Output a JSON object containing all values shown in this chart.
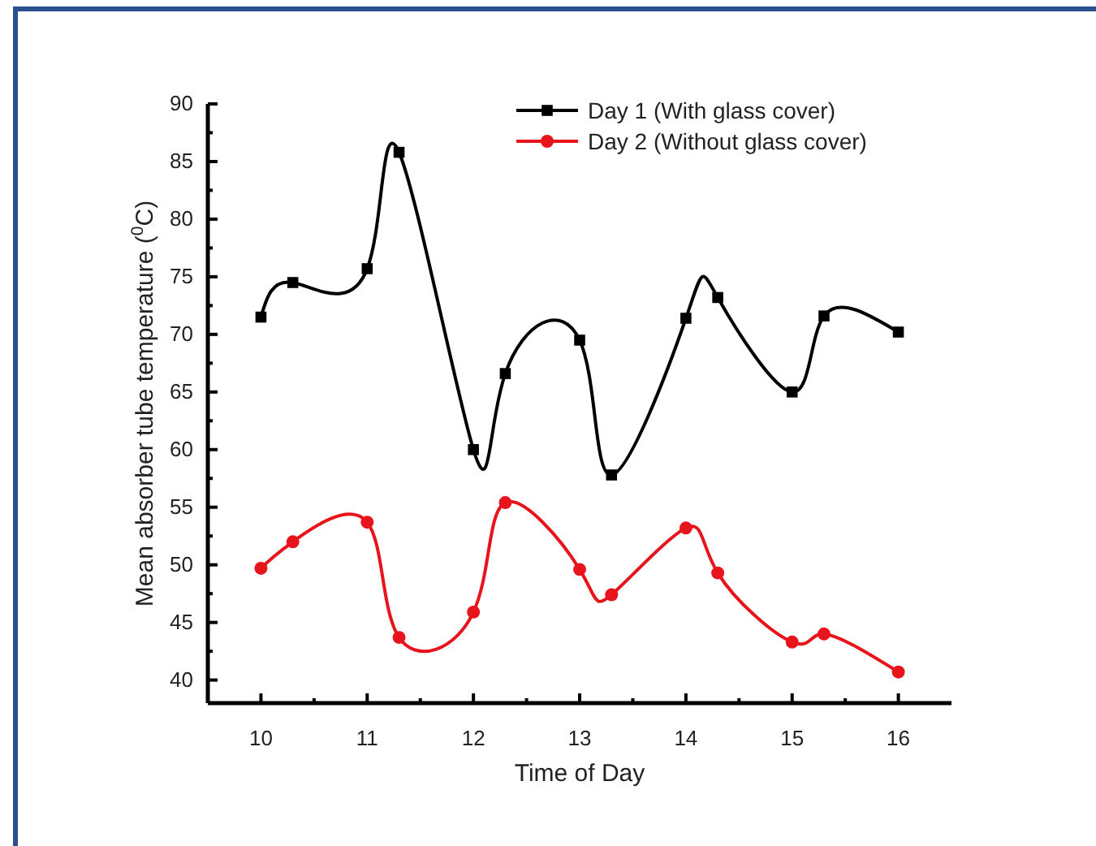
{
  "chart_data": {
    "type": "line",
    "xlabel": "Time of Day",
    "ylabel": "Mean absorber tube temperature ($^{0}$C)",
    "x": [
      10,
      10.3,
      11,
      11.3,
      12,
      12.3,
      13,
      13.3,
      14,
      14.3,
      15,
      15.3,
      16
    ],
    "series": [
      {
        "name": "Day 1 (With glass cover)",
        "color": "#000000",
        "marker": "square",
        "values": [
          71.5,
          74.5,
          75.7,
          85.8,
          60,
          66.6,
          69.5,
          57.8,
          71.4,
          73.2,
          65,
          71.6,
          70.2
        ]
      },
      {
        "name": "Day 2 (Without glass cover)",
        "color": "#e8141b",
        "marker": "circle",
        "values": [
          49.7,
          52,
          53.7,
          43.7,
          45.9,
          55.4,
          49.6,
          47.4,
          53.2,
          49.3,
          43.3,
          44,
          40.7
        ]
      }
    ],
    "xlim": [
      9.5,
      16.5
    ],
    "xticks": [
      10,
      {
        "value": 10.5,
        "label": null
      },
      11,
      {
        "value": 11.5,
        "label": null
      },
      12,
      {
        "value": 12.5,
        "label": null
      },
      13,
      {
        "value": 13.5,
        "label": null
      },
      14,
      {
        "value": 14.5,
        "label": null
      },
      15,
      {
        "value": 15.5,
        "label": null
      },
      16
    ],
    "ylim": [
      38,
      90
    ],
    "yticks": [
      40,
      {
        "value": 42.5,
        "label": null
      },
      45,
      {
        "value": 47.5,
        "label": null
      },
      50,
      {
        "value": 52.5,
        "label": null
      },
      55,
      {
        "value": 57.5,
        "label": null
      },
      60,
      {
        "value": 62.5,
        "label": null
      },
      65,
      {
        "value": 67.5,
        "label": null
      },
      70,
      {
        "value": 72.5,
        "label": null
      },
      75,
      {
        "value": 77.5,
        "label": null
      },
      80,
      {
        "value": 82.5,
        "label": null
      },
      85,
      {
        "value": 87.5,
        "label": null
      },
      90
    ],
    "grid": false,
    "legend": "top right",
    "line_style": "solid"
  }
}
